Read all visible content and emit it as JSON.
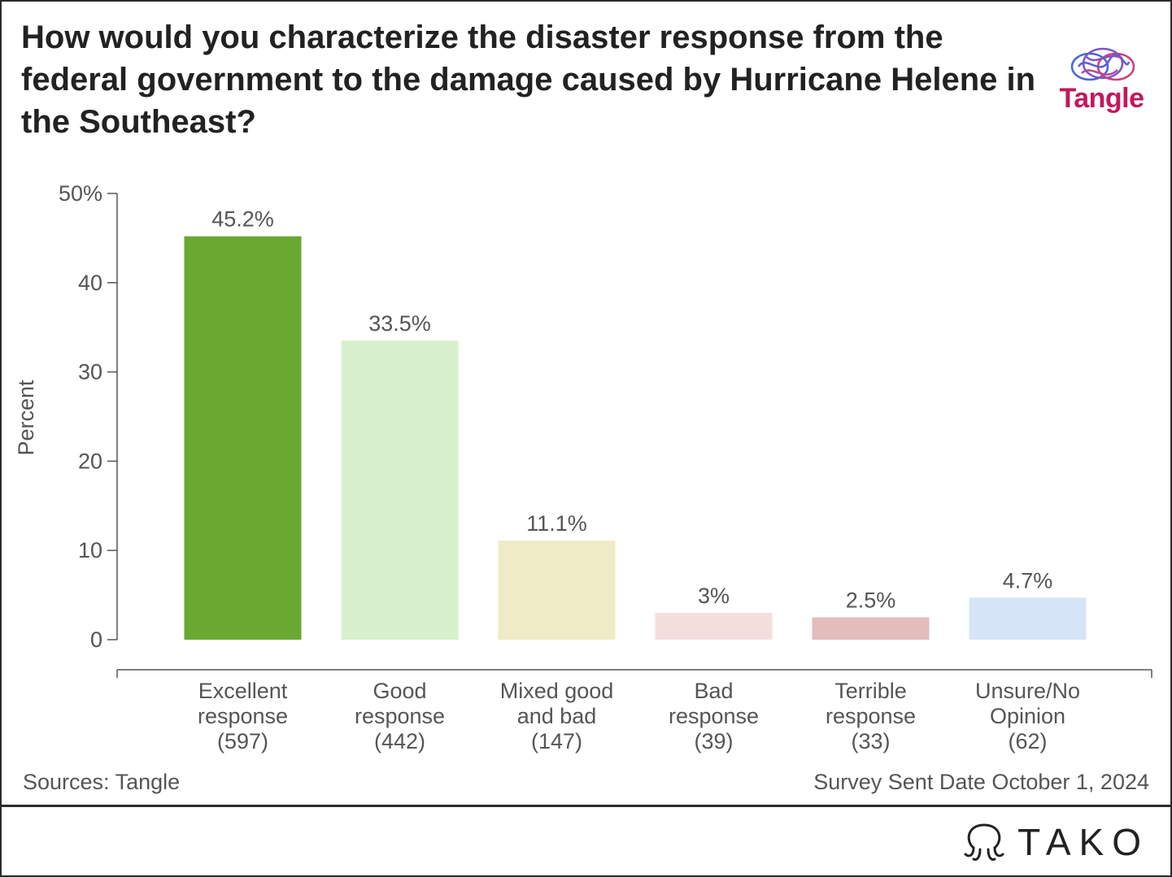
{
  "title": "How would you characterize the disaster response from the federal government to the damage caused by Hurricane Helene in the Southeast?",
  "logo": {
    "name": "Tangle",
    "icon": "brain-icon"
  },
  "source": "Sources: Tangle",
  "note": "Survey Sent Date October 1, 2024",
  "brand": {
    "name": "TAKO",
    "icon": "tako-icon"
  },
  "chart_data": {
    "type": "bar",
    "ylabel": "Percent",
    "ylim": [
      0,
      50
    ],
    "yticks": [
      {
        "value": 0,
        "label": "0"
      },
      {
        "value": 10,
        "label": "10"
      },
      {
        "value": 20,
        "label": "20"
      },
      {
        "value": 30,
        "label": "30"
      },
      {
        "value": 40,
        "label": "40"
      },
      {
        "value": 50,
        "label": "50%"
      }
    ],
    "categories": [
      [
        "Excellent",
        "response",
        "(597)"
      ],
      [
        "Good",
        "response",
        "(442)"
      ],
      [
        "Mixed good",
        "and bad",
        "(147)"
      ],
      [
        "Bad",
        "response",
        "(39)"
      ],
      [
        "Terrible",
        "response",
        "(33)"
      ],
      [
        "Unsure/No",
        "Opinion",
        "(62)"
      ]
    ],
    "values": [
      45.2,
      33.5,
      11.1,
      3,
      2.5,
      4.7
    ],
    "value_labels": [
      "45.2%",
      "33.5%",
      "11.1%",
      "3%",
      "2.5%",
      "4.7%"
    ],
    "colors": [
      "#6aa832",
      "#d9f0cc",
      "#efebc6",
      "#f3dede",
      "#e3bcbc",
      "#d6e4f7"
    ],
    "grid": false
  }
}
